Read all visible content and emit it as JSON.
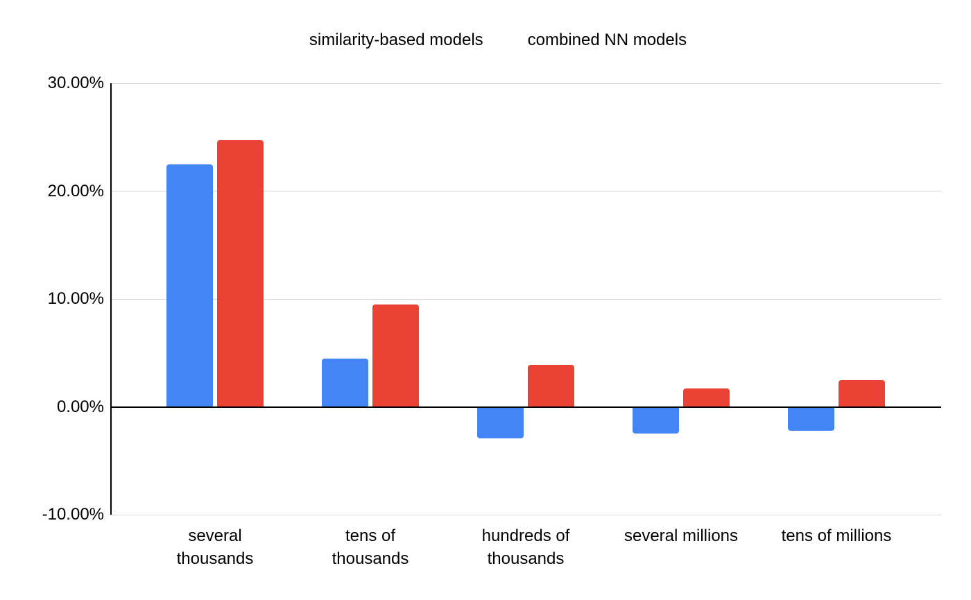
{
  "chart_data": {
    "type": "bar",
    "title": "",
    "xlabel": "",
    "ylabel": "",
    "categories": [
      "several\nthousands",
      "tens of\nthousands",
      "hundreds of\nthousands",
      "several millions",
      "tens of millions"
    ],
    "series": [
      {
        "name": "similarity-based models",
        "color": "#4285F4",
        "values": [
          22.5,
          4.5,
          -2.9,
          -2.5,
          -2.2
        ]
      },
      {
        "name": "combined NN models",
        "color": "#EA4335",
        "values": [
          24.7,
          9.5,
          3.9,
          1.7,
          2.5
        ]
      }
    ],
    "ylim": [
      -10,
      30
    ],
    "yticks": [
      {
        "value": 30,
        "label": "30.00%"
      },
      {
        "value": 20,
        "label": "20.00%"
      },
      {
        "value": 10,
        "label": "10.00%"
      },
      {
        "value": 0,
        "label": "0.00%"
      },
      {
        "value": -10,
        "label": "-10.00%"
      }
    ],
    "grid": true,
    "legend_position": "top"
  },
  "colors": {
    "background": "#ffffff",
    "gridline": "#d5d5d5",
    "axis": "#000000",
    "text": "#000000",
    "series_blue": "#4285F4",
    "series_red": "#EA4335"
  }
}
